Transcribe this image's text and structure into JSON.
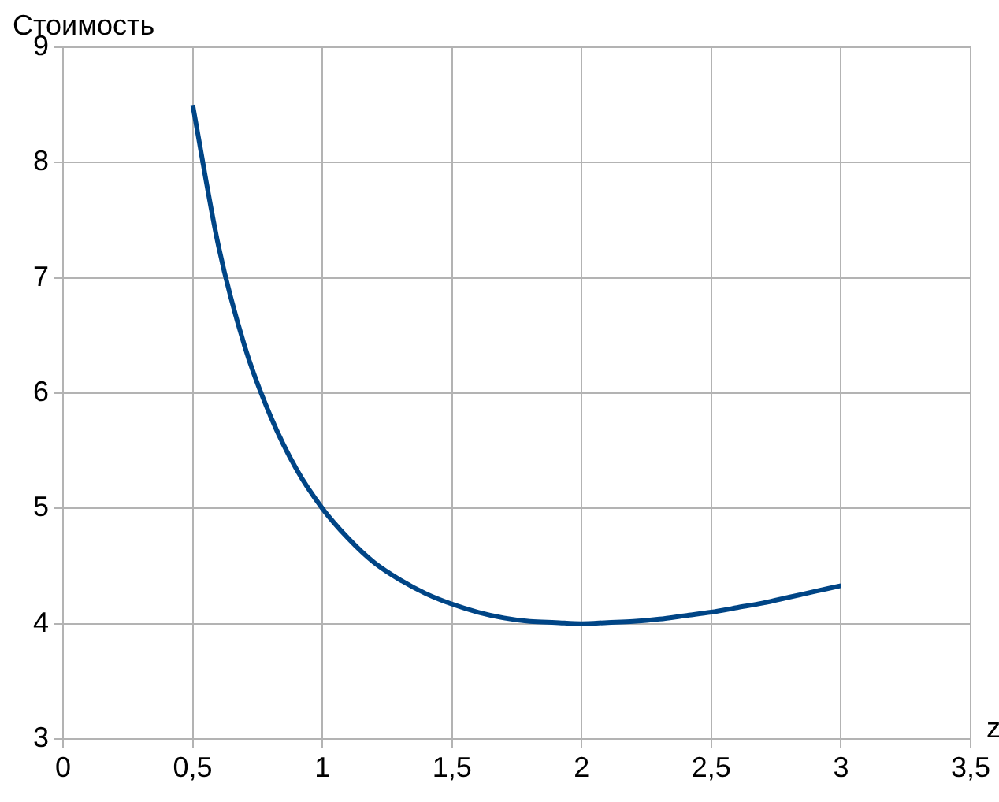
{
  "chart_data": {
    "type": "line",
    "ylabel": "Стоимость",
    "xlabel": "z",
    "x": [
      0.5,
      0.6,
      0.7,
      0.8,
      0.9,
      1.0,
      1.1,
      1.2,
      1.3,
      1.4,
      1.5,
      1.6,
      1.7,
      1.8,
      1.9,
      2.0,
      2.1,
      2.2,
      2.3,
      2.4,
      2.5,
      2.6,
      2.7,
      2.8,
      2.9,
      3.0
    ],
    "series": [
      {
        "color": "#004586",
        "values": [
          8.5,
          7.27,
          6.41,
          5.8,
          5.34,
          5.0,
          4.74,
          4.53,
          4.38,
          4.26,
          4.17,
          4.1,
          4.05,
          4.02,
          4.01,
          4.0,
          4.01,
          4.02,
          4.04,
          4.07,
          4.1,
          4.14,
          4.18,
          4.23,
          4.28,
          4.33
        ]
      }
    ],
    "xlim": [
      0,
      3.5
    ],
    "ylim": [
      3,
      9
    ],
    "xticks": [
      0,
      {
        "value": 0.5,
        "label": "0,5"
      },
      1,
      {
        "value": 1.5,
        "label": "1,5"
      },
      2,
      {
        "value": 2.5,
        "label": "2,5"
      },
      3,
      {
        "value": 3.5,
        "label": "3,5"
      }
    ],
    "yticks": [
      3,
      4,
      5,
      6,
      7,
      8,
      9
    ],
    "grid": true,
    "legend": false,
    "marker": "none",
    "line_style": "solid"
  }
}
